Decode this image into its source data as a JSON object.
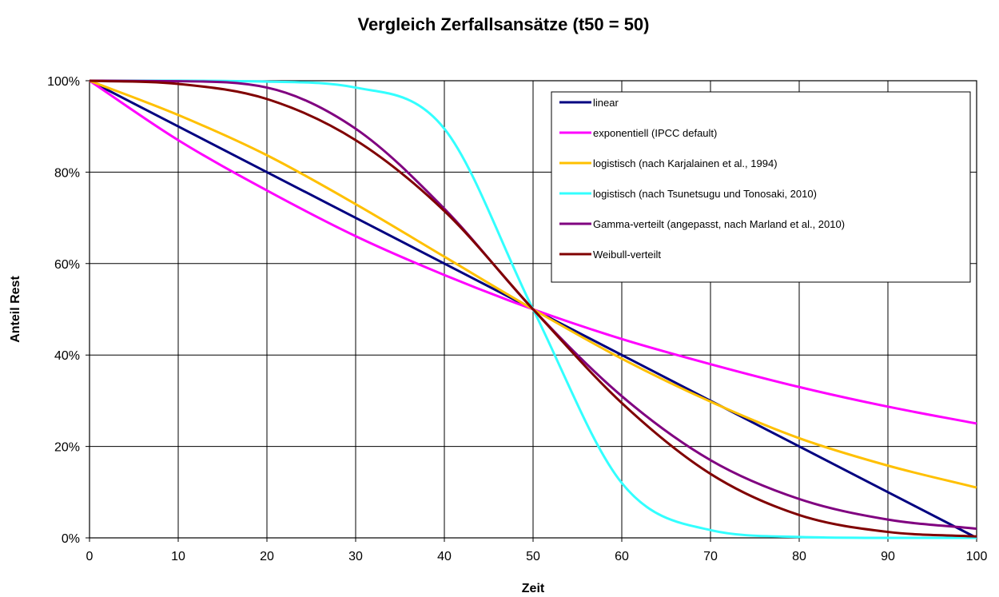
{
  "chart_data": {
    "type": "line",
    "title": "Vergleich Zerfallsansätze (t50 = 50)",
    "xlabel": "Zeit",
    "ylabel": "Anteil Rest",
    "xlim": [
      0,
      100
    ],
    "ylim": [
      0,
      100
    ],
    "x_ticks": [
      "0",
      "10",
      "20",
      "30",
      "40",
      "50",
      "60",
      "70",
      "80",
      "90",
      "100"
    ],
    "y_ticks": [
      "0%",
      "20%",
      "40%",
      "60%",
      "80%",
      "100%"
    ],
    "grid": true,
    "legend_position": "top-right",
    "x": [
      0,
      10,
      20,
      30,
      40,
      50,
      60,
      70,
      80,
      90,
      100
    ],
    "series": [
      {
        "name": "linear",
        "color": "#000080",
        "values": [
          100,
          90,
          80,
          70,
          60,
          50,
          40,
          30,
          20,
          10,
          0
        ]
      },
      {
        "name": "exponentiell (IPCC default)",
        "color": "#FF00FF",
        "values": [
          100,
          87,
          76,
          66,
          57.5,
          50,
          43.5,
          38,
          33,
          28.7,
          25
        ]
      },
      {
        "name": "logistisch (nach Karjalainen et al., 1994)",
        "color": "#FFC000",
        "values": [
          100,
          92.5,
          83.7,
          73,
          61.5,
          50,
          39.2,
          29.8,
          21.8,
          15.8,
          11
        ]
      },
      {
        "name": "logistisch (nach Tsunetsugu und Tonosaki, 2010)",
        "color": "#33FFFF",
        "values": [
          100,
          100,
          99.8,
          98.5,
          89.5,
          50,
          12,
          1.7,
          0.2,
          0,
          0
        ]
      },
      {
        "name": "Gamma-verteilt (angepasst, nach Marland et al., 2010)",
        "color": "#800080",
        "values": [
          100,
          99.9,
          98.5,
          89.5,
          72,
          50,
          31,
          17,
          8.5,
          4,
          2
        ]
      },
      {
        "name": "Weibull-verteilt",
        "color": "#800000",
        "values": [
          100,
          99.3,
          96,
          87,
          71.5,
          50,
          29.5,
          14,
          5,
          1.3,
          0.3
        ]
      }
    ]
  }
}
